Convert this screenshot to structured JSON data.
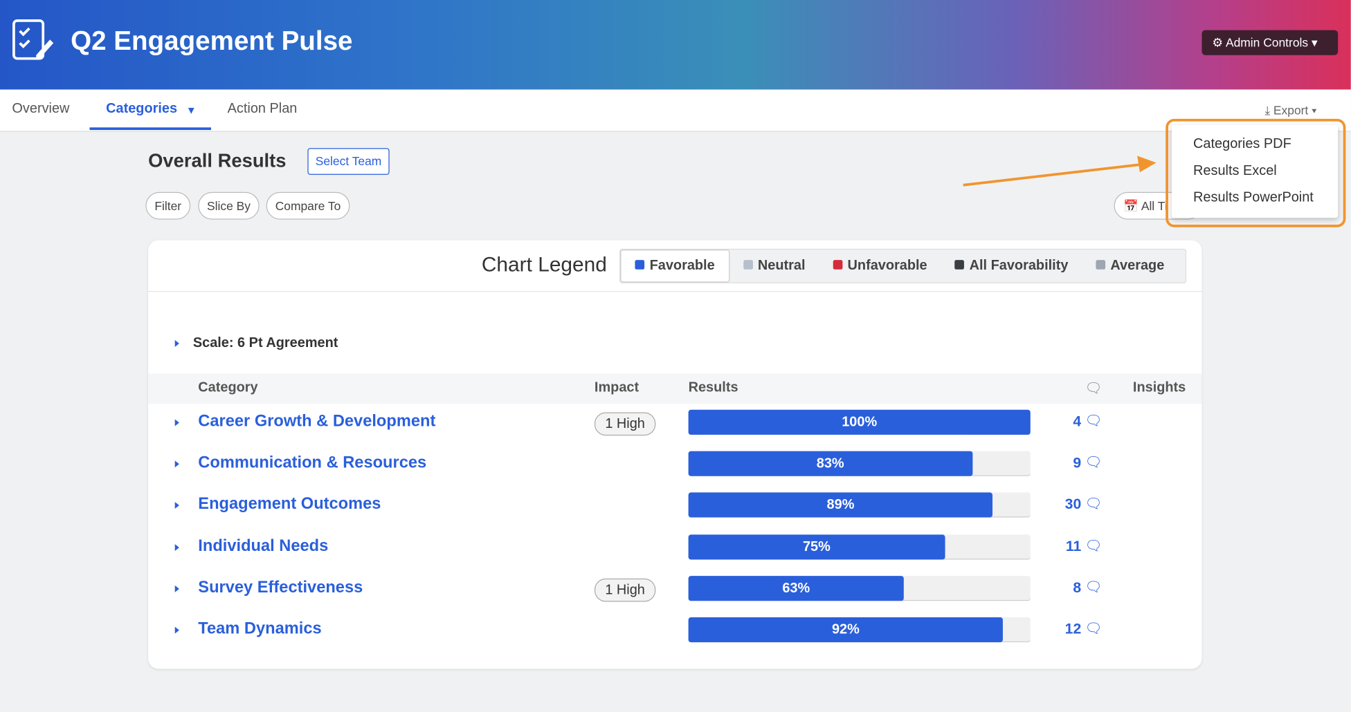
{
  "header": {
    "title": "Q2 Engagement Pulse",
    "admin": "Admin Controls"
  },
  "nav": {
    "tabs": [
      "Overview",
      "Categories",
      "Action Plan"
    ],
    "export": "Export"
  },
  "export_menu": [
    "Categories PDF",
    "Results Excel",
    "Results PowerPoint"
  ],
  "toolbar": {
    "title": "Overall Results",
    "select_team": "Select Team",
    "filters": [
      "Filter",
      "Slice By",
      "Compare To"
    ],
    "time": "All Ti"
  },
  "legend": {
    "title": "Chart Legend",
    "items": [
      {
        "name": "Favorable",
        "color": "#2a5fdb"
      },
      {
        "name": "Neutral",
        "color": "#b6bfcc"
      },
      {
        "name": "Unfavorable",
        "color": "#d42c3a"
      },
      {
        "name": "All Favorability",
        "color": "#3a3d42"
      },
      {
        "name": "Average",
        "color": "#9ea6b3"
      }
    ]
  },
  "scale": "Scale: 6 Pt Agreement",
  "table": {
    "columns": [
      "Category",
      "Impact",
      "Results",
      "Insights"
    ],
    "rows": [
      {
        "category": "Career Growth & Development",
        "impact": "1 High",
        "result": 100,
        "result_label": "100%",
        "comments": 4
      },
      {
        "category": "Communication & Resources",
        "result": 83,
        "result_label": "83%",
        "comments": 9
      },
      {
        "category": "Engagement Outcomes",
        "result": 89,
        "result_label": "89%",
        "comments": 30
      },
      {
        "category": "Individual Needs",
        "result": 75,
        "result_label": "75%",
        "comments": 11
      },
      {
        "category": "Survey Effectiveness",
        "impact": "1 High",
        "result": 63,
        "result_label": "63%",
        "comments": 8
      },
      {
        "category": "Team Dynamics",
        "result": 92,
        "result_label": "92%",
        "comments": 12
      }
    ]
  }
}
